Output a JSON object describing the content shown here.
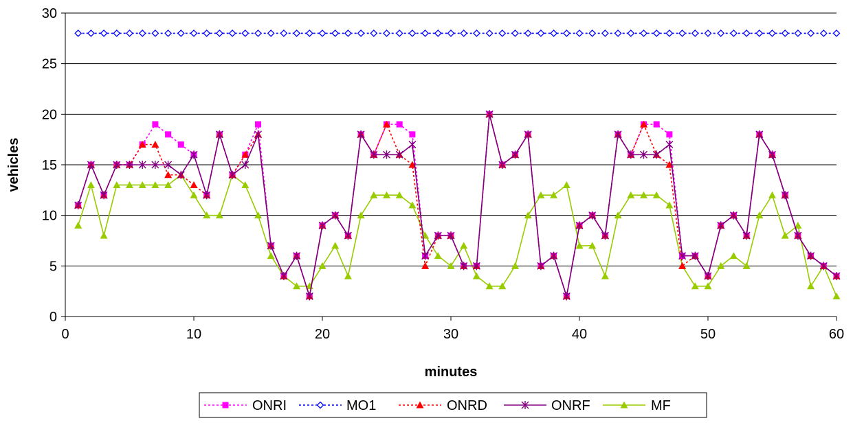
{
  "chart_data": {
    "type": "line",
    "title": "",
    "xlabel": "minutes",
    "ylabel": "vehicles",
    "xlim": [
      0,
      60
    ],
    "ylim": [
      0,
      30
    ],
    "xticks": [
      0,
      10,
      20,
      30,
      40,
      50,
      60
    ],
    "yticks": [
      0,
      5,
      10,
      15,
      20,
      25,
      30
    ],
    "grid": "horizontal",
    "legend_position": "bottom",
    "x": [
      1,
      2,
      3,
      4,
      5,
      6,
      7,
      8,
      9,
      10,
      11,
      12,
      13,
      14,
      15,
      16,
      17,
      18,
      19,
      20,
      21,
      22,
      23,
      24,
      25,
      26,
      27,
      28,
      29,
      30,
      31,
      32,
      33,
      34,
      35,
      36,
      37,
      38,
      39,
      40,
      41,
      42,
      43,
      44,
      45,
      46,
      47,
      48,
      49,
      50,
      51,
      52,
      53,
      54,
      55,
      56,
      57,
      58,
      59,
      60
    ],
    "series": [
      {
        "name": "ONRI",
        "color": "#ff00ff",
        "line_style": "dashed",
        "marker": "square",
        "values": [
          11,
          15,
          12,
          15,
          15,
          17,
          19,
          18,
          17,
          16,
          12,
          18,
          14,
          16,
          19,
          7,
          4,
          6,
          2,
          9,
          10,
          8,
          18,
          16,
          19,
          19,
          18,
          6,
          8,
          8,
          5,
          5,
          20,
          15,
          16,
          18,
          5,
          6,
          2,
          9,
          10,
          8,
          18,
          16,
          19,
          19,
          18,
          6,
          6,
          4,
          9,
          10,
          8,
          18,
          16,
          12,
          8,
          6,
          5,
          4
        ]
      },
      {
        "name": "MO1",
        "color": "#0000ff",
        "line_style": "dashed",
        "marker": "diamond-open",
        "values": [
          28,
          28,
          28,
          28,
          28,
          28,
          28,
          28,
          28,
          28,
          28,
          28,
          28,
          28,
          28,
          28,
          28,
          28,
          28,
          28,
          28,
          28,
          28,
          28,
          28,
          28,
          28,
          28,
          28,
          28,
          28,
          28,
          28,
          28,
          28,
          28,
          28,
          28,
          28,
          28,
          28,
          28,
          28,
          28,
          28,
          28,
          28,
          28,
          28,
          28,
          28,
          28,
          28,
          28,
          28,
          28,
          28,
          28,
          28,
          28
        ]
      },
      {
        "name": "ONRD",
        "color": "#ff0000",
        "line_style": "dashed",
        "marker": "triangle",
        "values": [
          11,
          15,
          12,
          15,
          15,
          17,
          17,
          14,
          14,
          13,
          12,
          18,
          14,
          16,
          18,
          7,
          4,
          6,
          2,
          9,
          10,
          8,
          18,
          16,
          19,
          16,
          15,
          5,
          8,
          8,
          5,
          5,
          20,
          15,
          16,
          18,
          5,
          6,
          2,
          9,
          10,
          8,
          18,
          16,
          19,
          16,
          15,
          5,
          6,
          4,
          9,
          10,
          8,
          18,
          16,
          12,
          8,
          6,
          5,
          4
        ]
      },
      {
        "name": "ONRF",
        "color": "#800080",
        "line_style": "solid",
        "marker": "star",
        "values": [
          11,
          15,
          12,
          15,
          15,
          15,
          15,
          15,
          14,
          16,
          12,
          18,
          14,
          15,
          18,
          7,
          4,
          6,
          2,
          9,
          10,
          8,
          18,
          16,
          16,
          16,
          17,
          6,
          8,
          8,
          5,
          5,
          20,
          15,
          16,
          18,
          5,
          6,
          2,
          9,
          10,
          8,
          18,
          16,
          16,
          16,
          17,
          6,
          6,
          4,
          9,
          10,
          8,
          18,
          16,
          12,
          8,
          6,
          5,
          4
        ]
      },
      {
        "name": "MF",
        "color": "#99cc00",
        "line_style": "solid",
        "marker": "triangle",
        "values": [
          9,
          13,
          8,
          13,
          13,
          13,
          13,
          13,
          14,
          12,
          10,
          10,
          14,
          13,
          10,
          6,
          4,
          3,
          3,
          5,
          7,
          4,
          10,
          12,
          12,
          12,
          11,
          8,
          6,
          5,
          7,
          4,
          3,
          3,
          5,
          10,
          12,
          12,
          13,
          7,
          7,
          4,
          10,
          12,
          12,
          12,
          11,
          5,
          3,
          3,
          5,
          6,
          5,
          10,
          12,
          8,
          9,
          3,
          5,
          2
        ]
      }
    ]
  }
}
